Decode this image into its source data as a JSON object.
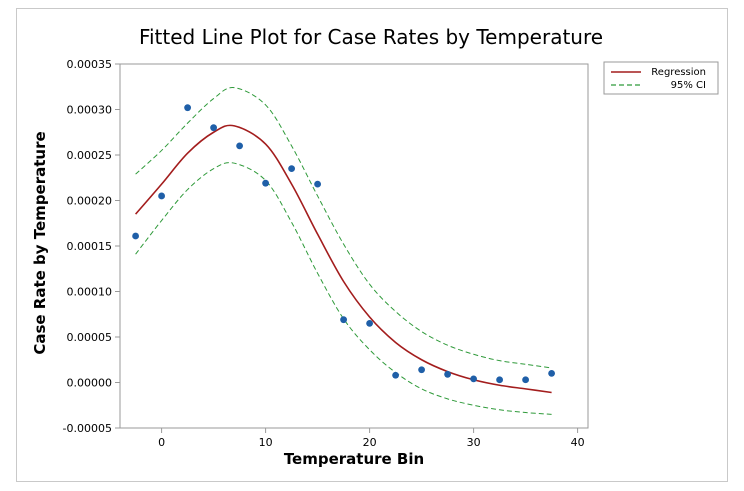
{
  "chart_data": {
    "type": "scatter",
    "title": "Fitted Line Plot for Case Rates by Temperature",
    "xlabel": "Temperature Bin",
    "ylabel": "Case Rate by Temperature",
    "xlim": [
      -4,
      41
    ],
    "ylim": [
      -5e-05,
      0.00035
    ],
    "x_ticks": [
      0,
      10,
      20,
      30,
      40
    ],
    "x_tick_labels": [
      "0",
      "10",
      "20",
      "30",
      "40"
    ],
    "y_ticks": [
      -5e-05,
      0,
      5e-05,
      0.0001,
      0.00015,
      0.0002,
      0.00025,
      0.0003,
      0.00035
    ],
    "y_tick_labels": [
      "-0.00005",
      "0.00000",
      "0.00005",
      "0.00010",
      "0.00015",
      "0.00020",
      "0.00025",
      "0.00030",
      "0.00035"
    ],
    "grid": false,
    "legend_position": "top-right outside",
    "legend": [
      {
        "label": "Regression",
        "style": "solid",
        "color": "#a31d1d"
      },
      {
        "label": "95% CI",
        "style": "dashed",
        "color": "#2f9a3a"
      }
    ],
    "points": {
      "color": "#1f5fa8",
      "x": [
        -2.5,
        0,
        2.5,
        5,
        7.5,
        10,
        12.5,
        15,
        17.5,
        20,
        22.5,
        25,
        27.5,
        30,
        32.5,
        35,
        37.5
      ],
      "y": [
        0.000161,
        0.000205,
        0.000302,
        0.00028,
        0.00026,
        0.000219,
        0.000235,
        0.000218,
        6.9e-05,
        6.5e-05,
        8e-06,
        1.4e-05,
        9e-06,
        4e-06,
        3e-06,
        3e-06,
        1e-05
      ]
    },
    "regression": {
      "x": [
        -2.5,
        0,
        2.5,
        5,
        7,
        10,
        12.5,
        15,
        17.5,
        20,
        22.5,
        25,
        27.5,
        30,
        32.5,
        35,
        37.5
      ],
      "y": [
        0.000185,
        0.000218,
        0.000252,
        0.000275,
        0.000282,
        0.000262,
        0.000218,
        0.000163,
        0.000111,
        7.2e-05,
        4.4e-05,
        2.5e-05,
        1.2e-05,
        3e-06,
        -3e-06,
        -7e-06,
        -1.1e-05
      ]
    },
    "ci_upper": {
      "x": [
        -2.5,
        0,
        2.5,
        5,
        7,
        10,
        12.5,
        15,
        17.5,
        20,
        22.5,
        25,
        27.5,
        30,
        32.5,
        35,
        37.5
      ],
      "y": [
        0.000229,
        0.000255,
        0.000285,
        0.000312,
        0.000324,
        0.000305,
        0.00026,
        0.000205,
        0.000152,
        0.000108,
        7.8e-05,
        5.6e-05,
        4.1e-05,
        3.1e-05,
        2.4e-05,
        2e-05,
        1.6e-05
      ]
    },
    "ci_lower": {
      "x": [
        -2.5,
        0,
        2.5,
        5,
        7,
        10,
        12.5,
        15,
        17.5,
        20,
        22.5,
        25,
        27.5,
        30,
        32.5,
        35,
        37.5
      ],
      "y": [
        0.000141,
        0.000178,
        0.000212,
        0.000235,
        0.000241,
        0.000222,
        0.000176,
        0.00012,
        7e-05,
        3.6e-05,
        1.1e-05,
        -7e-06,
        -1.8e-05,
        -2.5e-05,
        -3e-05,
        -3.3e-05,
        -3.5e-05
      ]
    }
  }
}
